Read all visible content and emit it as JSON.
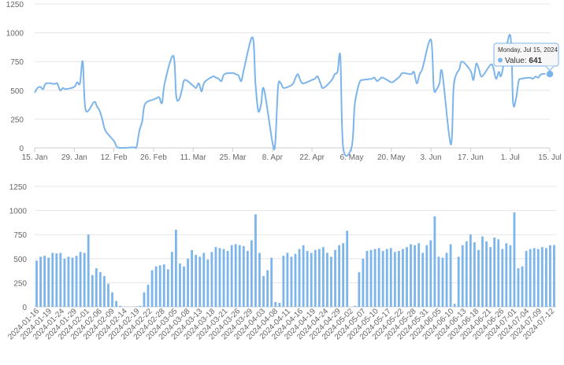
{
  "chart_data": [
    {
      "type": "line",
      "x_start": "2024-01-15",
      "x_end": "2024-07-15",
      "ylim": [
        0,
        1250
      ],
      "y_ticks": [
        0,
        250,
        500,
        750,
        1000,
        1250
      ],
      "x_tick_labels": [
        "15. Jan",
        "29. Jan",
        "12. Feb",
        "26. Feb",
        "11. Mar",
        "25. Mar",
        "8. Apr",
        "22. Apr",
        "6. May",
        "20. May",
        "3. Jun",
        "17. Jun",
        "1. Jul",
        "15. Jul"
      ],
      "grid": true,
      "color": "#7cb5ec",
      "tooltip": {
        "date": "Monday, Jul 15, 2024",
        "label": "Value:",
        "value": "641"
      }
    },
    {
      "type": "bar",
      "ylim": [
        0,
        1250
      ],
      "y_ticks": [
        0,
        250,
        500,
        750,
        1000,
        1250
      ],
      "x_tick_labels": [
        "2024-01-16",
        "2024-01-19",
        "2024-01-24",
        "2024-01-29",
        "2024-02-01",
        "2024-02-06",
        "2024-02-09",
        "2024-02-14",
        "2024-02-19",
        "2024-02-22",
        "2024-02-28",
        "2024-03-05",
        "2024-03-08",
        "2024-03-13",
        "2024-03-18",
        "2024-03-21",
        "2024-03-26",
        "2024-03-29",
        "2024-04-03",
        "2024-04-08",
        "2024-04-11",
        "2024-04-16",
        "2024-04-19",
        "2024-04-24",
        "2024-04-29",
        "2024-05-02",
        "2024-05-07",
        "2024-05-10",
        "2024-05-17",
        "2024-05-22",
        "2024-05-28",
        "2024-05-31",
        "2024-06-05",
        "2024-06-10",
        "2024-06-13",
        "2024-06-18",
        "2024-06-21",
        "2024-06-26",
        "2024-07-01",
        "2024-07-04",
        "2024-07-09",
        "2024-07-12"
      ],
      "grid": true,
      "color": "#7cb5ec"
    }
  ],
  "series": {
    "dates": [
      "2024-01-15",
      "2024-01-16",
      "2024-01-17",
      "2024-01-18",
      "2024-01-19",
      "2024-01-22",
      "2024-01-23",
      "2024-01-24",
      "2024-01-25",
      "2024-01-26",
      "2024-01-29",
      "2024-01-30",
      "2024-01-31",
      "2024-02-01",
      "2024-02-02",
      "2024-02-05",
      "2024-02-06",
      "2024-02-07",
      "2024-02-08",
      "2024-02-09",
      "2024-02-12",
      "2024-02-13",
      "2024-02-14",
      "2024-02-15",
      "2024-02-16",
      "2024-02-19",
      "2024-02-20",
      "2024-02-21",
      "2024-02-22",
      "2024-02-23",
      "2024-02-26",
      "2024-02-27",
      "2024-02-28",
      "2024-02-29",
      "2024-03-01",
      "2024-03-04",
      "2024-03-05",
      "2024-03-06",
      "2024-03-07",
      "2024-03-08",
      "2024-03-11",
      "2024-03-12",
      "2024-03-13",
      "2024-03-14",
      "2024-03-15",
      "2024-03-18",
      "2024-03-19",
      "2024-03-20",
      "2024-03-21",
      "2024-03-22",
      "2024-03-25",
      "2024-03-26",
      "2024-03-27",
      "2024-03-28",
      "2024-03-29",
      "2024-04-01",
      "2024-04-02",
      "2024-04-03",
      "2024-04-04",
      "2024-04-05",
      "2024-04-08",
      "2024-04-09",
      "2024-04-10",
      "2024-04-11",
      "2024-04-12",
      "2024-04-15",
      "2024-04-16",
      "2024-04-17",
      "2024-04-18",
      "2024-04-19",
      "2024-04-22",
      "2024-04-23",
      "2024-04-24",
      "2024-04-25",
      "2024-04-26",
      "2024-04-29",
      "2024-04-30",
      "2024-05-01",
      "2024-05-02",
      "2024-05-03",
      "2024-05-06",
      "2024-05-07",
      "2024-05-08",
      "2024-05-09",
      "2024-05-10",
      "2024-05-13",
      "2024-05-14",
      "2024-05-15",
      "2024-05-16",
      "2024-05-17",
      "2024-05-20",
      "2024-05-21",
      "2024-05-22",
      "2024-05-23",
      "2024-05-24",
      "2024-05-27",
      "2024-05-28",
      "2024-05-29",
      "2024-05-30",
      "2024-05-31",
      "2024-06-03",
      "2024-06-04",
      "2024-06-05",
      "2024-06-06",
      "2024-06-07",
      "2024-06-10",
      "2024-06-11",
      "2024-06-12",
      "2024-06-13",
      "2024-06-14",
      "2024-06-17",
      "2024-06-18",
      "2024-06-19",
      "2024-06-20",
      "2024-06-21",
      "2024-06-24",
      "2024-06-25",
      "2024-06-26",
      "2024-06-27",
      "2024-06-28",
      "2024-07-01",
      "2024-07-02",
      "2024-07-03",
      "2024-07-04",
      "2024-07-05",
      "2024-07-08",
      "2024-07-09",
      "2024-07-10",
      "2024-07-11",
      "2024-07-12",
      "2024-07-15"
    ],
    "values": [
      480,
      520,
      530,
      510,
      560,
      555,
      560,
      500,
      520,
      510,
      530,
      570,
      560,
      750,
      330,
      400,
      360,
      320,
      240,
      150,
      60,
      10,
      0,
      0,
      0,
      5,
      10,
      150,
      230,
      380,
      420,
      430,
      440,
      390,
      570,
      800,
      450,
      420,
      500,
      590,
      540,
      520,
      560,
      490,
      570,
      620,
      610,
      600,
      580,
      640,
      650,
      640,
      630,
      580,
      690,
      960,
      560,
      320,
      380,
      510,
      50,
      40,
      530,
      560,
      520,
      550,
      600,
      640,
      580,
      560,
      590,
      600,
      620,
      560,
      520,
      590,
      640,
      660,
      790,
      0,
      10,
      360,
      500,
      580,
      590,
      600,
      610,
      580,
      600,
      610,
      570,
      580,
      600,
      620,
      650,
      640,
      660,
      560,
      640,
      690,
      940,
      520,
      510,
      560,
      650,
      30,
      520,
      640,
      680,
      750,
      670,
      590,
      730,
      680,
      620,
      720,
      700,
      600,
      660,
      640,
      980,
      400,
      420,
      580,
      600,
      610,
      600,
      620,
      610,
      640,
      641
    ]
  }
}
